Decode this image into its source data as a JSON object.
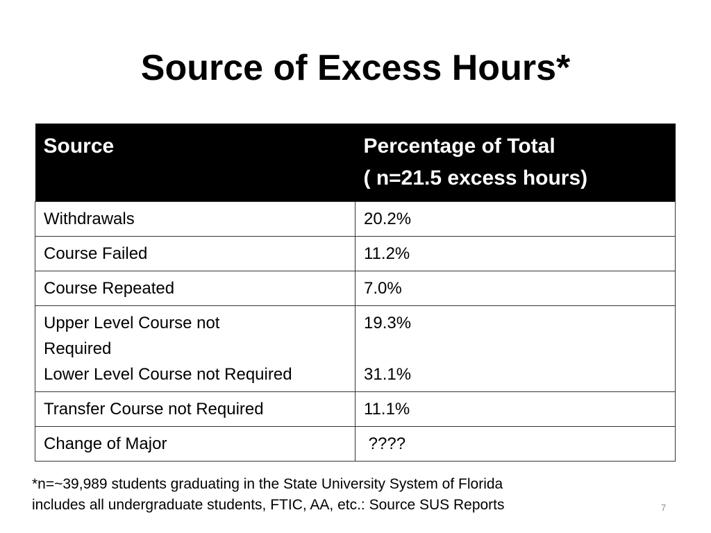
{
  "slide": {
    "title": "Source of Excess Hours*",
    "table": {
      "header": {
        "col1": "Source",
        "col2_line1": "Percentage of Total",
        "col2_line2": "( n=21.5 excess hours)"
      },
      "rows": [
        {
          "source": "Withdrawals",
          "value": "20.2%"
        },
        {
          "source": "Course Failed",
          "value": "11.2%"
        },
        {
          "source": "Course Repeated",
          "value": "7.0%"
        },
        {
          "source_a_line1": "Upper Level Course not",
          "source_a_line2": "Required",
          "value_a": "19.3%",
          "source_b": "Lower Level Course not Required",
          "value_b": "31.1%"
        },
        {
          "source": "Transfer Course not Required",
          "value": "11.1%"
        },
        {
          "source": "Change of Major",
          "value": " ????"
        }
      ]
    },
    "footnote_line1": "*n=~39,989 students graduating in the State University System of Florida",
    "footnote_line2": "includes all undergraduate students, FTIC, AA, etc.: Source SUS Reports",
    "page_number": "7"
  }
}
